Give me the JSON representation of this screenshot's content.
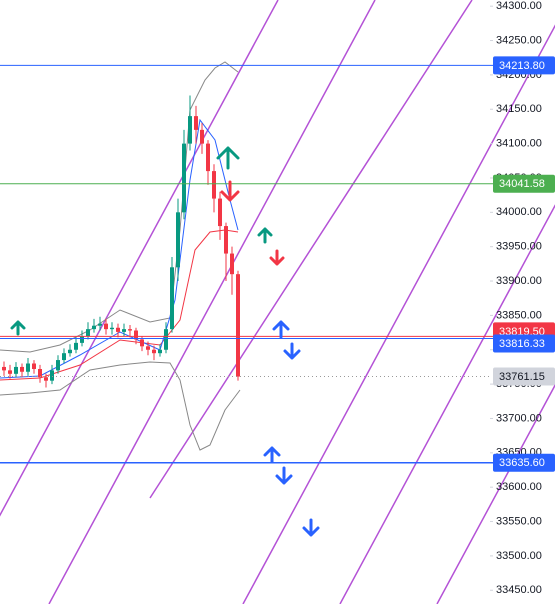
{
  "chart_data": {
    "type": "candlestick",
    "open": [
      33775,
      33770,
      33765,
      33775,
      33768,
      33780,
      33772,
      33760,
      33755,
      33770,
      33785,
      33795,
      33800,
      33810,
      33820,
      33830,
      33835,
      33838,
      33830,
      33832,
      33826,
      33830,
      33828,
      33815,
      33805,
      33800,
      33795,
      33800,
      33830,
      33920,
      34000,
      34100,
      34140,
      34120,
      34100,
      34060,
      34020,
      33980,
      33940,
      33910
    ],
    "high": [
      33783,
      33778,
      33782,
      33780,
      33788,
      33785,
      33778,
      33765,
      33778,
      33792,
      33802,
      33808,
      33818,
      33828,
      33840,
      33845,
      33848,
      33845,
      33840,
      33838,
      33838,
      33836,
      33832,
      33820,
      33812,
      33806,
      33808,
      33840,
      33935,
      34020,
      34120,
      34170,
      34155,
      34130,
      34105,
      34070,
      34030,
      33985,
      33950,
      33915
    ],
    "low": [
      33762,
      33758,
      33760,
      33760,
      33762,
      33765,
      33752,
      33745,
      33750,
      33765,
      33780,
      33790,
      33795,
      33805,
      33815,
      33825,
      33828,
      33822,
      33822,
      33818,
      33820,
      33818,
      33808,
      33798,
      33792,
      33785,
      33790,
      33795,
      33825,
      33900,
      33990,
      34090,
      34100,
      34085,
      34040,
      34000,
      33960,
      33900,
      33880,
      33755
    ],
    "close": [
      33770,
      33765,
      33775,
      33768,
      33780,
      33772,
      33760,
      33755,
      33770,
      33785,
      33795,
      33800,
      33810,
      33820,
      33830,
      33835,
      33838,
      33830,
      33832,
      33826,
      33830,
      33828,
      33815,
      33805,
      33800,
      33795,
      33800,
      33830,
      33920,
      34000,
      34100,
      34140,
      34120,
      34100,
      34060,
      34020,
      33980,
      33940,
      33910,
      33761
    ],
    "up_color": "#089981",
    "down_color": "#f23645",
    "ylim": [
      33430,
      34309
    ],
    "yticks": [
      {
        "value": 34300,
        "label": "34300.00"
      },
      {
        "value": 34250,
        "label": "34250.00"
      },
      {
        "value": 34200,
        "label": "34200.00"
      },
      {
        "value": 34150,
        "label": "34150.00"
      },
      {
        "value": 34100,
        "label": "34100.00"
      },
      {
        "value": 34050,
        "label": "34050.00"
      },
      {
        "value": 34000,
        "label": "34000.00"
      },
      {
        "value": 33950,
        "label": "33950.00"
      },
      {
        "value": 33900,
        "label": "33900.00"
      },
      {
        "value": 33850,
        "label": "33850.00"
      },
      {
        "value": 33800,
        "label": "33800.00"
      },
      {
        "value": 33750,
        "label": "33750.00"
      },
      {
        "value": 33700,
        "label": "33700.00"
      },
      {
        "value": 33650,
        "label": "33650.00"
      },
      {
        "value": 33600,
        "label": "33600.00"
      },
      {
        "value": 33550,
        "label": "33550.00"
      },
      {
        "value": 33500,
        "label": "33500.00"
      },
      {
        "value": 33450,
        "label": "33450.00"
      }
    ],
    "levels": [
      {
        "value": 34213.8,
        "label": "34213.80",
        "color": "#2962ff"
      },
      {
        "value": 34041.58,
        "label": "34041.58",
        "color": "#4caf50"
      },
      {
        "value": 33819.5,
        "label": "33819.50",
        "color": "#f23645"
      },
      {
        "value": 33816.33,
        "label": "33816.33",
        "color": "#2962ff"
      },
      {
        "value": 33635.6,
        "label": "33635.60",
        "color": "#2962ff"
      }
    ],
    "last_price": {
      "value": 33761.15,
      "label": "33761.15",
      "color": "#d1d4dc"
    }
  }
}
